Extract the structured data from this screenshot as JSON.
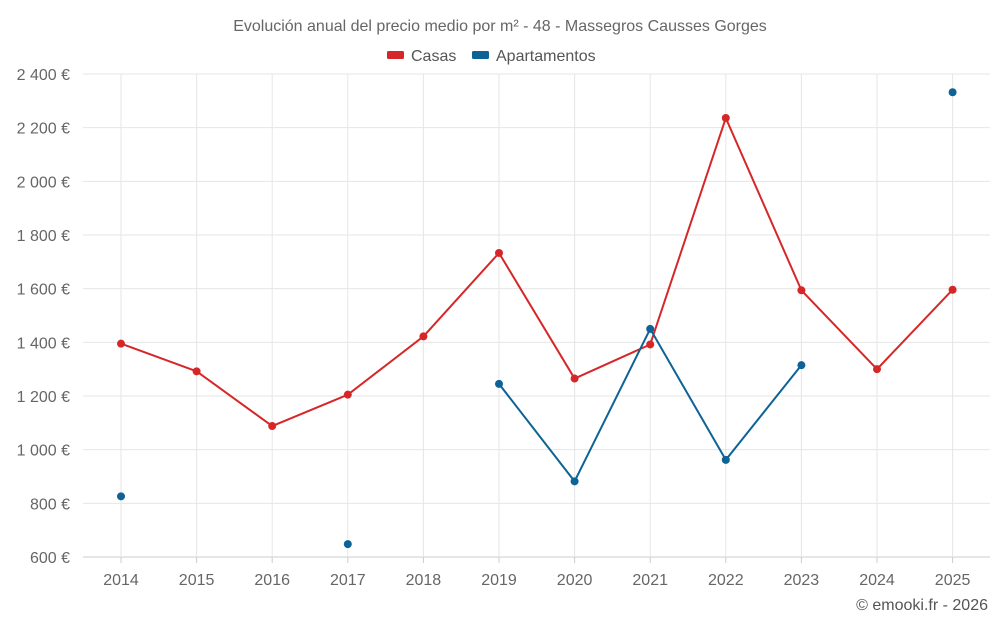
{
  "chart_data": {
    "type": "line",
    "title": "Evolución anual del precio medio por m² - 48 - Massegros Causses Gorges",
    "categories": [
      "2014",
      "2015",
      "2016",
      "2017",
      "2018",
      "2019",
      "2020",
      "2021",
      "2022",
      "2023",
      "2024",
      "2025"
    ],
    "series": [
      {
        "name": "Casas",
        "color": "#d62728",
        "values": [
          1395,
          1292,
          1088,
          1205,
          1422,
          1733,
          1265,
          1392,
          2236,
          1594,
          1300,
          1596
        ]
      },
      {
        "name": "Apartamentos",
        "color": "#0d6396",
        "values": [
          826,
          null,
          null,
          648,
          null,
          1245,
          882,
          1450,
          962,
          1315,
          null,
          2332
        ]
      }
    ],
    "ylim": [
      600,
      2400
    ],
    "yticks": [
      600,
      800,
      1000,
      1200,
      1400,
      1600,
      1800,
      2000,
      2200,
      2400
    ],
    "ytick_labels": [
      "600 €",
      "800 €",
      "1 000 €",
      "1 200 €",
      "1 400 €",
      "1 600 €",
      "1 800 €",
      "2 000 €",
      "2 200 €",
      "2 400 €"
    ],
    "legend_position": "top-center",
    "grid": true
  },
  "credit": "© emooki.fr - 2026"
}
